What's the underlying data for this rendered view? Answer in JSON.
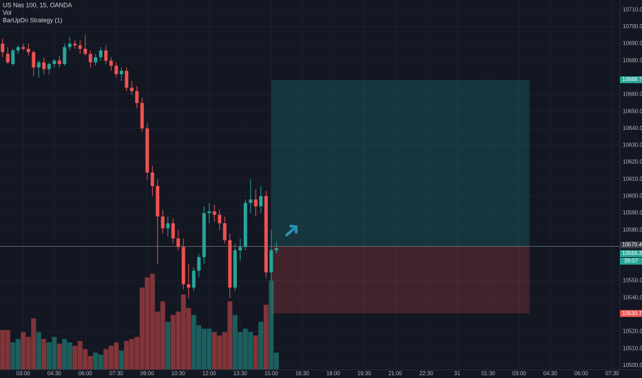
{
  "chart_data": {
    "type": "candlestick",
    "title": "US Nas 100, 15, OANDA",
    "strategy": "BarUpDn Strategy (1)",
    "up_color": "#26a69a",
    "down_color": "#ef5350",
    "grid": true,
    "xlim": [
      -0.5,
      119.5
    ],
    "ylim": [
      10497.5,
      10715.8
    ],
    "ohlc": [
      [
        10690,
        10693,
        10682,
        10685
      ],
      [
        10684,
        10688,
        10678,
        10679
      ],
      [
        10678,
        10687,
        10677,
        10686
      ],
      [
        10686,
        10689,
        10684,
        10688
      ],
      [
        10688,
        10690,
        10686,
        10687
      ],
      [
        10687,
        10690,
        10683,
        10685
      ],
      [
        10685,
        10686,
        10671,
        10676
      ],
      [
        10676,
        10680,
        10670,
        10679
      ],
      [
        10679,
        10682,
        10672,
        10675
      ],
      [
        10675,
        10679,
        10672,
        10678
      ],
      [
        10678,
        10681,
        10676,
        10680
      ],
      [
        10680,
        10683,
        10676,
        10678
      ],
      [
        10678,
        10690,
        10677,
        10688
      ],
      [
        10688,
        10694,
        10686,
        10690
      ],
      [
        10690,
        10692,
        10687,
        10689
      ],
      [
        10689,
        10692,
        10684,
        10687
      ],
      [
        10687,
        10695,
        10683,
        10684
      ],
      [
        10684,
        10686,
        10676,
        10679
      ],
      [
        10679,
        10684,
        10677,
        10682
      ],
      [
        10682,
        10688,
        10680,
        10686
      ],
      [
        10686,
        10689,
        10678,
        10680
      ],
      [
        10680,
        10682,
        10674,
        10677
      ],
      [
        10677,
        10679,
        10670,
        10672
      ],
      [
        10672,
        10676,
        10668,
        10674
      ],
      [
        10674,
        10676,
        10662,
        10664
      ],
      [
        10664,
        10668,
        10660,
        10662
      ],
      [
        10662,
        10665,
        10652,
        10655
      ],
      [
        10655,
        10658,
        10638,
        10640
      ],
      [
        10640,
        10643,
        10610,
        10614
      ],
      [
        10614,
        10618,
        10600,
        10606
      ],
      [
        10606,
        10610,
        10560,
        10588
      ],
      [
        10588,
        10592,
        10578,
        10581
      ],
      [
        10581,
        10588,
        10576,
        10584
      ],
      [
        10584,
        10587,
        10572,
        10575
      ],
      [
        10575,
        10580,
        10568,
        10570
      ],
      [
        10570,
        10575,
        10545,
        10548
      ],
      [
        10548,
        10560,
        10540,
        10546
      ],
      [
        10546,
        10558,
        10544,
        10556
      ],
      [
        10556,
        10566,
        10552,
        10564
      ],
      [
        10564,
        10594,
        10560,
        10590
      ],
      [
        10590,
        10596,
        10584,
        10591
      ],
      [
        10591,
        10595,
        10585,
        10589
      ],
      [
        10589,
        10592,
        10580,
        10584
      ],
      [
        10584,
        10588,
        10572,
        10574
      ],
      [
        10574,
        10578,
        10540,
        10546
      ],
      [
        10546,
        10572,
        10544,
        10568
      ],
      [
        10568,
        10575,
        10562,
        10570
      ],
      [
        10570,
        10598,
        10568,
        10596
      ],
      [
        10596,
        10610,
        10590,
        10598
      ],
      [
        10598,
        10604,
        10588,
        10594
      ],
      [
        10594,
        10606,
        10590,
        10600
      ],
      [
        10600,
        10603,
        10552,
        10555
      ],
      [
        10555,
        10580,
        10550,
        10568
      ],
      [
        10568,
        10573,
        10566,
        10569.3
      ]
    ],
    "volume": {
      "name": "Vol",
      "ylim": [
        0,
        540
      ],
      "values": [
        58,
        58,
        40,
        45,
        55,
        48,
        75,
        55,
        45,
        40,
        48,
        38,
        45,
        40,
        35,
        42,
        30,
        20,
        25,
        22,
        30,
        35,
        40,
        28,
        42,
        45,
        48,
        120,
        135,
        140,
        85,
        100,
        70,
        80,
        85,
        110,
        90,
        80,
        65,
        60,
        60,
        55,
        50,
        55,
        100,
        80,
        55,
        60,
        55,
        50,
        70,
        95,
        130,
        25
      ]
    },
    "yticks": [
      {
        "value": 10500,
        "label": "10500.0"
      },
      {
        "value": 10510,
        "label": "10510.0"
      },
      {
        "value": 10520,
        "label": "10520.0"
      },
      {
        "value": 10540,
        "label": "10540.0"
      },
      {
        "value": 10550,
        "label": "10550.0"
      },
      {
        "value": 10580,
        "label": "10580.0"
      },
      {
        "value": 10590,
        "label": "10590.0"
      },
      {
        "value": 10600,
        "label": "10600.0"
      },
      {
        "value": 10610,
        "label": "10610.0"
      },
      {
        "value": 10620,
        "label": "10620.0"
      },
      {
        "value": 10630,
        "label": "10630.0"
      },
      {
        "value": 10640,
        "label": "10640.0"
      },
      {
        "value": 10650,
        "label": "10650.0"
      },
      {
        "value": 10660,
        "label": "10660.0"
      },
      {
        "value": 10680,
        "label": "10680.0"
      },
      {
        "value": 10690,
        "label": "10690.0"
      },
      {
        "value": 10700,
        "label": "10700.0"
      },
      {
        "value": 10710,
        "label": "10710.0"
      }
    ],
    "xticks": [
      {
        "value": 4,
        "label": "03:00"
      },
      {
        "value": 10,
        "label": "04:30"
      },
      {
        "value": 16,
        "label": "06:00"
      },
      {
        "value": 22,
        "label": "07:30"
      },
      {
        "value": 28,
        "label": "09:00"
      },
      {
        "value": 34,
        "label": "10:30"
      },
      {
        "value": 40,
        "label": "12:00"
      },
      {
        "value": 46,
        "label": "13:30"
      },
      {
        "value": 52,
        "label": "15:00"
      },
      {
        "value": 58,
        "label": "16:30"
      },
      {
        "value": 64,
        "label": "18:00"
      },
      {
        "value": 70,
        "label": "19:30"
      },
      {
        "value": 76,
        "label": "21:00"
      },
      {
        "value": 82,
        "label": "22:30"
      },
      {
        "value": 88,
        "label": "31"
      },
      {
        "value": 94,
        "label": "01:30"
      },
      {
        "value": 100,
        "label": "03:00"
      },
      {
        "value": 106,
        "label": "04:30"
      },
      {
        "value": 112,
        "label": "06:00"
      },
      {
        "value": 118,
        "label": "07:30"
      }
    ],
    "position": {
      "target": 10668.7,
      "entry": 10570.4,
      "stop": 10530.7,
      "start": 52,
      "end": 102
    },
    "last_price": 10569.3,
    "countdown": "39:07"
  }
}
